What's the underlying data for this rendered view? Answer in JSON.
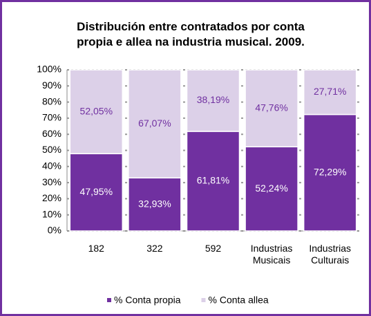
{
  "chart_data": {
    "type": "stacked_bar",
    "title": "Distribución entre contratados por conta propia e allea na industria musical. 2009.",
    "categories": [
      "182",
      "322",
      "592",
      "Industrias Musicais",
      "Industrias Culturais"
    ],
    "series": [
      {
        "name": "% Conta propia",
        "color": "#7030a0",
        "values": [
          47.95,
          32.93,
          61.81,
          52.24,
          72.29
        ],
        "value_labels": [
          "47,95%",
          "32,93%",
          "61,81%",
          "52,24%",
          "72,29%"
        ]
      },
      {
        "name": "% Conta allea",
        "color": "#dcd0e8",
        "values": [
          52.05,
          67.07,
          38.19,
          47.76,
          27.71
        ],
        "value_labels": [
          "52,05%",
          "67,07%",
          "38,19%",
          "47,76%",
          "27,71%"
        ]
      }
    ],
    "ylim": [
      0,
      100
    ],
    "yticks": [
      {
        "value": 0,
        "label": "0%"
      },
      {
        "value": 10,
        "label": "10%"
      },
      {
        "value": 20,
        "label": "20%"
      },
      {
        "value": 30,
        "label": "30%"
      },
      {
        "value": 40,
        "label": "40%"
      },
      {
        "value": 50,
        "label": "50%"
      },
      {
        "value": 60,
        "label": "60%"
      },
      {
        "value": 70,
        "label": "70%"
      },
      {
        "value": 80,
        "label": "80%"
      },
      {
        "value": 90,
        "label": "90%"
      },
      {
        "value": 100,
        "label": "100%"
      }
    ],
    "grid": true,
    "legend": "bottom"
  }
}
